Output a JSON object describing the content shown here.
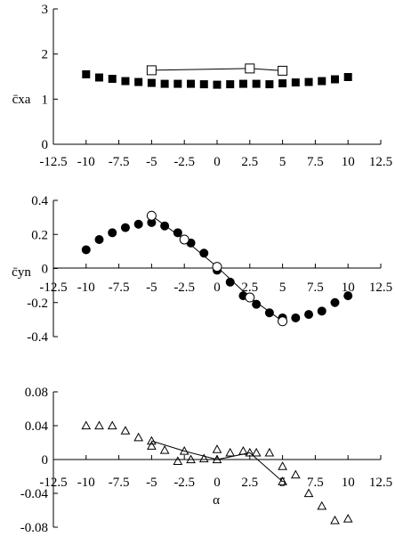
{
  "chart_data": [
    {
      "type": "scatter",
      "ylabel": "c̄xa",
      "xlim": [
        -12.5,
        12.5
      ],
      "ylim": [
        0,
        3
      ],
      "xticks": [
        -12.5,
        -10,
        -7.5,
        -5,
        -2.5,
        0,
        2.5,
        5,
        7.5,
        10,
        12.5
      ],
      "xtick_labels": [
        "-12.5",
        "-10",
        "-7.5",
        "-5",
        "-2.5",
        "0",
        "2.5",
        "5",
        "7.5",
        "10",
        "12.5"
      ],
      "yticks": [
        0,
        1,
        2,
        3
      ],
      "ytick_labels": [
        "0",
        "1",
        "2",
        "3"
      ],
      "series": [
        {
          "marker": "filled-square",
          "x": [
            -10,
            -9,
            -8,
            -7,
            -6,
            -5,
            -4,
            -3,
            -2,
            -1,
            0,
            1,
            2,
            3,
            4,
            5,
            6,
            7,
            8,
            9,
            10
          ],
          "y": [
            1.55,
            1.48,
            1.45,
            1.4,
            1.38,
            1.36,
            1.34,
            1.34,
            1.34,
            1.33,
            1.32,
            1.33,
            1.34,
            1.34,
            1.33,
            1.35,
            1.37,
            1.38,
            1.4,
            1.44,
            1.49
          ]
        },
        {
          "marker": "open-square-line",
          "x": [
            -5,
            2.5,
            5
          ],
          "y": [
            1.64,
            1.68,
            1.63
          ]
        }
      ]
    },
    {
      "type": "scatter",
      "ylabel": "c̄yn",
      "xlim": [
        -12.5,
        12.5
      ],
      "ylim": [
        -0.4,
        0.4
      ],
      "xticks": [
        -12.5,
        -10,
        -7.5,
        -5,
        -2.5,
        0,
        2.5,
        5,
        7.5,
        10,
        12.5
      ],
      "xtick_labels": [
        "-12.5",
        "-10",
        "-7.5",
        "-5",
        "-2.5",
        "0",
        "2.5",
        "5",
        "7.5",
        "10",
        "12.5"
      ],
      "yticks": [
        -0.4,
        -0.2,
        0,
        0.2,
        0.4
      ],
      "ytick_labels": [
        "-0.4",
        "-0.2",
        "0",
        "0.2",
        "0.4"
      ],
      "series": [
        {
          "marker": "filled-circle",
          "x": [
            -10,
            -9,
            -8,
            -7,
            -6,
            -5,
            -4,
            -3,
            -2,
            -1,
            0,
            1,
            2,
            3,
            4,
            5,
            6,
            7,
            8,
            9,
            10
          ],
          "y": [
            0.11,
            0.17,
            0.21,
            0.24,
            0.26,
            0.27,
            0.25,
            0.21,
            0.15,
            0.09,
            -0.01,
            -0.08,
            -0.16,
            -0.21,
            -0.26,
            -0.29,
            -0.29,
            -0.27,
            -0.25,
            -0.2,
            -0.16
          ]
        },
        {
          "marker": "open-circle-line",
          "x": [
            -5,
            -2.5,
            0,
            2.5,
            5
          ],
          "y": [
            0.31,
            0.17,
            0.01,
            -0.17,
            -0.31
          ]
        }
      ]
    },
    {
      "type": "scatter",
      "xlabel": "α",
      "xlim": [
        -12.5,
        12.5
      ],
      "ylim": [
        -0.08,
        0.08
      ],
      "xticks": [
        -12.5,
        -10,
        -7.5,
        -5,
        -2.5,
        0,
        2.5,
        5,
        7.5,
        10,
        12.5
      ],
      "xtick_labels": [
        "-12.5",
        "-10",
        "-7.5",
        "-5",
        "-2.5",
        "0",
        "2.5",
        "5",
        "7.5",
        "10",
        "12.5"
      ],
      "yticks": [
        -0.08,
        -0.04,
        0,
        0.04,
        0.08
      ],
      "ytick_labels": [
        "-0.08",
        "-0.04",
        "0",
        "0.04",
        "0.08"
      ],
      "series": [
        {
          "marker": "open-triangle",
          "x": [
            -10,
            -9,
            -8,
            -7,
            -6,
            -5,
            -4,
            -3,
            -2,
            -1,
            0,
            1,
            2,
            3,
            4,
            5,
            6,
            7,
            8,
            9,
            10
          ],
          "y": [
            0.04,
            0.04,
            0.04,
            0.034,
            0.026,
            0.016,
            0.011,
            -0.002,
            0.0,
            0.001,
            0.012,
            0.008,
            0.01,
            0.008,
            0.008,
            -0.008,
            -0.018,
            -0.04,
            -0.055,
            -0.072,
            -0.07
          ]
        },
        {
          "marker": "open-triangle-line",
          "x": [
            -5,
            -2.5,
            0,
            2.5,
            5
          ],
          "y": [
            0.022,
            0.01,
            0.0,
            0.008,
            -0.026
          ]
        }
      ]
    }
  ]
}
